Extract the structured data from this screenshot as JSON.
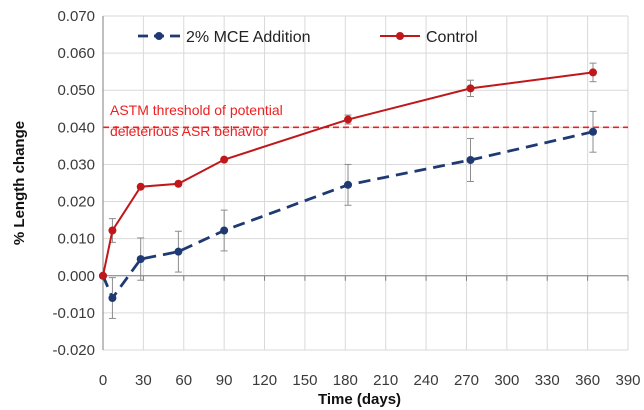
{
  "chart_data": {
    "type": "line",
    "title": "",
    "xlabel": "Time (days)",
    "ylabel": "% Length change",
    "xlim": [
      0,
      390
    ],
    "ylim": [
      -0.02,
      0.07
    ],
    "x_ticks": [
      0,
      30,
      60,
      90,
      120,
      150,
      180,
      210,
      240,
      270,
      300,
      330,
      360,
      390
    ],
    "y_ticks": [
      -0.02,
      -0.01,
      0.0,
      0.01,
      0.02,
      0.03,
      0.04,
      0.05,
      0.06,
      0.07
    ],
    "x_tick_labels": [
      "0",
      "30",
      "60",
      "90",
      "120",
      "150",
      "180",
      "210",
      "240",
      "270",
      "300",
      "330",
      "360",
      "390"
    ],
    "y_tick_labels": [
      "-0.020",
      "-0.010",
      "0.000",
      "0.010",
      "0.020",
      "0.030",
      "0.040",
      "0.050",
      "0.060",
      "0.070"
    ],
    "grid": true,
    "legend_position": "top",
    "series": [
      {
        "name": "2% MCE Addition",
        "color": "#1f3a73",
        "line_style": "dashed",
        "x": [
          0,
          7,
          28,
          56,
          90,
          182,
          273,
          364
        ],
        "y": [
          0.0,
          -0.006,
          0.0045,
          0.0065,
          0.0122,
          0.0245,
          0.0312,
          0.0388
        ],
        "error": [
          0.0,
          0.0055,
          0.0057,
          0.0055,
          0.0055,
          0.0055,
          0.0058,
          0.0055
        ]
      },
      {
        "name": "Control",
        "color": "#c0171b",
        "line_style": "solid",
        "x": [
          0,
          7,
          28,
          56,
          90,
          182,
          273,
          364
        ],
        "y": [
          0.0,
          0.0122,
          0.024,
          0.0248,
          0.0313,
          0.0421,
          0.0505,
          0.0548
        ],
        "error": [
          0.0,
          0.0032,
          0.0,
          0.0,
          0.0,
          0.0012,
          0.0022,
          0.0025
        ]
      }
    ],
    "threshold": {
      "value": 0.04,
      "color": "#ee2020",
      "label_lines": [
        "ASTM threshold of potential",
        "deleterious ASR behavior"
      ]
    }
  }
}
